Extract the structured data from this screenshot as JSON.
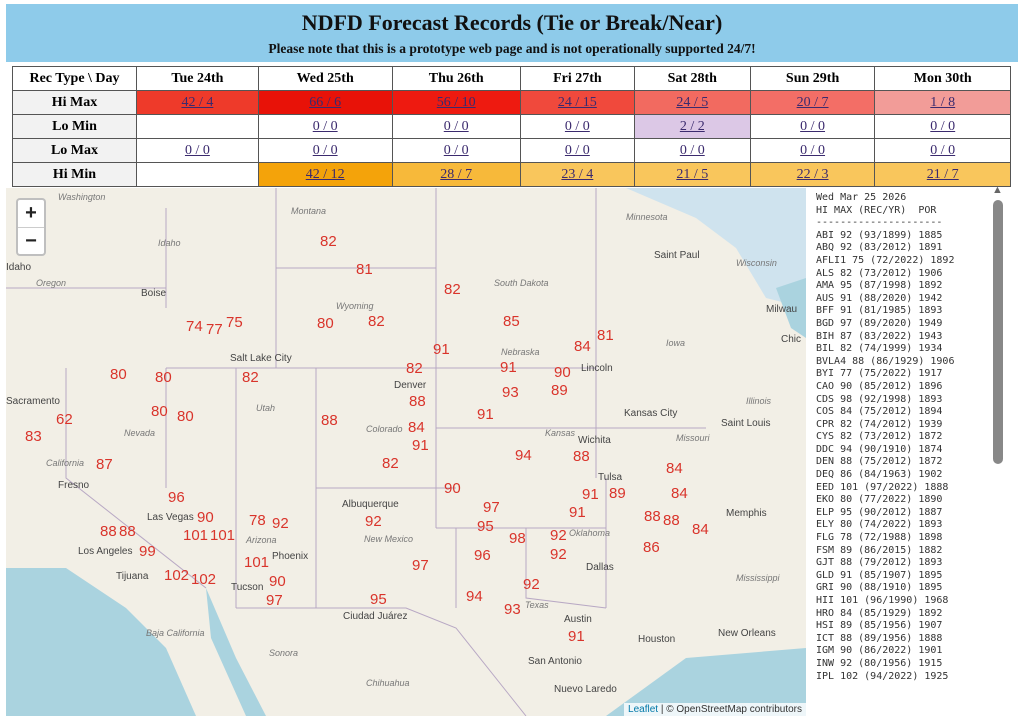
{
  "header": {
    "title": "NDFD Forecast Records (Tie or Break/Near)",
    "notice": "Please note that this is a prototype web page and is not operationally supported 24/7!"
  },
  "table": {
    "corner": "Rec Type \\ Day",
    "days": [
      "Tue 24th",
      "Wed 25th",
      "Thu 26th",
      "Fri 27th",
      "Sat 28th",
      "Sun 29th",
      "Mon 30th"
    ],
    "rows": [
      {
        "label": "Hi Max",
        "cells": [
          "42 / 4",
          "66 / 6",
          "56 / 10",
          "24 / 15",
          "24 / 5",
          "20 / 7",
          "1 / 8"
        ],
        "colors": [
          "#ee3a2a",
          "#e81208",
          "#ee1a10",
          "#f0493c",
          "#f26a60",
          "#f36e66",
          "#f29c98"
        ]
      },
      {
        "label": "Lo Min",
        "cells": [
          "",
          "0 / 0",
          "0 / 0",
          "0 / 0",
          "2 / 2",
          "0 / 0",
          "0 / 0"
        ],
        "colors": [
          "#fff",
          "#fff",
          "#fff",
          "#fff",
          "#dcc8e6",
          "#fff",
          "#fff"
        ]
      },
      {
        "label": "Lo Max",
        "cells": [
          "0 / 0",
          "0 / 0",
          "0 / 0",
          "0 / 0",
          "0 / 0",
          "0 / 0",
          "0 / 0"
        ],
        "colors": [
          "#fff",
          "#fff",
          "#fff",
          "#fff",
          "#fff",
          "#fff",
          "#fff"
        ]
      },
      {
        "label": "Hi Min",
        "cells": [
          "",
          "42 / 12",
          "28 / 7",
          "23 / 4",
          "21 / 5",
          "22 / 3",
          "21 / 7"
        ],
        "colors": [
          "#fff",
          "#f4a30a",
          "#f7b93a",
          "#f9c65c",
          "#f9c65c",
          "#f9c65c",
          "#f9c65c"
        ]
      }
    ]
  },
  "map": {
    "zoom_in": "+",
    "zoom_out": "−",
    "attribution_leaflet": "Leaflet",
    "attribution_osm": "| © OpenStreetMap contributors",
    "regions": [
      "Washington",
      "Montana",
      "Minnesota",
      "Idaho",
      "Oregon",
      "Wyoming",
      "South Dakota",
      "Wisconsin",
      "Iowa",
      "Nebraska",
      "Utah",
      "Nevada",
      "Colorado",
      "Kansas",
      "Illinois",
      "Missouri",
      "California",
      "Arizona",
      "New Mexico",
      "Oklahoma",
      "Texas",
      "Mississippi",
      "Baja California",
      "Sonora",
      "Chihuahua"
    ],
    "cities": [
      "Boise",
      "Saint Paul",
      "Milwau",
      "Chic",
      "Lincoln",
      "Salt Lake City",
      "Denver",
      "Kansas City",
      "Saint Louis",
      "Wichita",
      "Sacramento",
      "Fresno",
      "Las Vegas",
      "Phoenix",
      "Tucson",
      "Albuquerque",
      "Tulsa",
      "Memphis",
      "Dallas",
      "Austin",
      "Houston",
      "San Antonio",
      "New Orleans",
      "Los Angeles",
      "Tijuana",
      "Ciudad Juárez",
      "Nuevo Laredo",
      "Idaho"
    ],
    "markers": [
      "82",
      "81",
      "82",
      "74",
      "77",
      "75",
      "80",
      "82",
      "85",
      "81",
      "84",
      "91",
      "80",
      "80",
      "82",
      "82",
      "91",
      "90",
      "89",
      "93",
      "88",
      "91",
      "62",
      "83",
      "80",
      "80",
      "88",
      "84",
      "91",
      "94",
      "88",
      "87",
      "82",
      "84",
      "90",
      "84",
      "96",
      "91",
      "89",
      "97",
      "95",
      "91",
      "88",
      "88",
      "84",
      "90",
      "101",
      "101",
      "78",
      "92",
      "92",
      "88",
      "88",
      "98",
      "92",
      "92",
      "86",
      "99",
      "96",
      "101",
      "97",
      "102",
      "102",
      "90",
      "97",
      "92",
      "94",
      "95",
      "93",
      "91"
    ]
  },
  "list": {
    "date": "Wed Mar 25 2026",
    "header": "HI MAX (REC/YR)  POR",
    "rule": "---------------------",
    "lines": [
      "ABI 92 (93/1899) 1885",
      "ABQ 92 (83/2012) 1891",
      "AFLI1 75 (72/2022) 1892",
      "ALS 82 (73/2012) 1906",
      "AMA 95 (87/1998) 1892",
      "AUS 91 (88/2020) 1942",
      "BFF 91 (81/1985) 1893",
      "BGD 97 (89/2020) 1949",
      "BIH 87 (83/2022) 1943",
      "BIL 82 (74/1999) 1934",
      "BVLA4 88 (86/1929) 1906",
      "BYI 77 (75/2022) 1917",
      "CAO 90 (85/2012) 1896",
      "CDS 98 (92/1998) 1893",
      "COS 84 (75/2012) 1894",
      "CPR 82 (74/2012) 1939",
      "CYS 82 (73/2012) 1872",
      "DDC 94 (90/1910) 1874",
      "DEN 88 (75/2012) 1872",
      "DEQ 86 (84/1963) 1902",
      "EED 101 (97/2022) 1888",
      "EKO 80 (77/2022) 1890",
      "ELP 95 (90/2012) 1887",
      "ELY 80 (74/2022) 1893",
      "FLG 78 (72/1988) 1898",
      "FSM 89 (86/2015) 1882",
      "GJT 88 (79/2012) 1893",
      "GLD 91 (85/1907) 1895",
      "GRI 90 (88/1910) 1895",
      "HII 101 (96/1990) 1968",
      "HRO 84 (85/1929) 1892",
      "HSI 89 (85/1956) 1907",
      "ICT 88 (89/1956) 1888",
      "IGM 90 (86/2022) 1901",
      "INW 92 (80/1956) 1915",
      "IPL 102 (94/2022) 1925"
    ]
  }
}
